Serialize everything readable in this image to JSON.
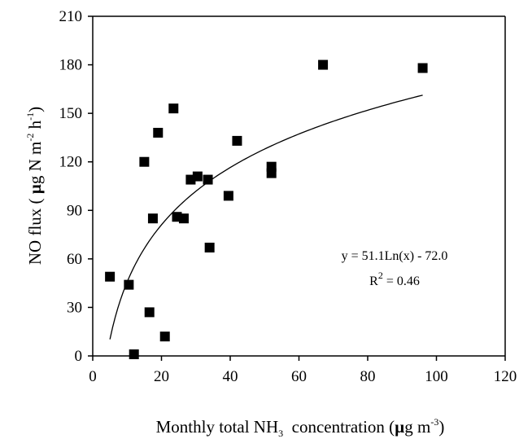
{
  "chart_data": {
    "type": "scatter",
    "title": "",
    "xlabel": {
      "prefix": "Monthly total NH",
      "sub": "3",
      "middle": "  concentration (",
      "mu": "µ",
      "unit": "g m",
      "sup": "-3",
      "suffix": ")"
    },
    "ylabel": {
      "prefix": "NO flux ( ",
      "mu": "µ",
      "unit1": "g N m",
      "sup1": "-2",
      "unit2": " h",
      "sup2": "-1",
      "suffix": ")"
    },
    "xlim": [
      0,
      120
    ],
    "ylim": [
      0,
      210
    ],
    "xticks": [
      0,
      20,
      40,
      60,
      80,
      100,
      120
    ],
    "yticks": [
      0,
      30,
      60,
      90,
      120,
      150,
      180,
      210
    ],
    "grid": false,
    "points": [
      {
        "x": 5,
        "y": 49
      },
      {
        "x": 10.5,
        "y": 44
      },
      {
        "x": 12,
        "y": 1
      },
      {
        "x": 15,
        "y": 120
      },
      {
        "x": 16.5,
        "y": 27
      },
      {
        "x": 17.5,
        "y": 85
      },
      {
        "x": 19,
        "y": 138
      },
      {
        "x": 21,
        "y": 12
      },
      {
        "x": 23.5,
        "y": 153
      },
      {
        "x": 24.5,
        "y": 86
      },
      {
        "x": 26.5,
        "y": 85
      },
      {
        "x": 28.5,
        "y": 109
      },
      {
        "x": 30.5,
        "y": 111
      },
      {
        "x": 33.5,
        "y": 109
      },
      {
        "x": 34,
        "y": 67
      },
      {
        "x": 39.5,
        "y": 99
      },
      {
        "x": 42,
        "y": 133
      },
      {
        "x": 52,
        "y": 117
      },
      {
        "x": 52,
        "y": 113
      },
      {
        "x": 67,
        "y": 180
      },
      {
        "x": 96,
        "y": 178
      }
    ],
    "trendline": {
      "type": "logarithmic",
      "a": 51.1,
      "b": -72.0,
      "x_range": [
        5,
        96
      ],
      "equation": "y = 51.1Ln(x) - 72.0",
      "r2_prefix": "R",
      "r2_sup": "2",
      "r2_suffix": " = 0.46"
    }
  }
}
